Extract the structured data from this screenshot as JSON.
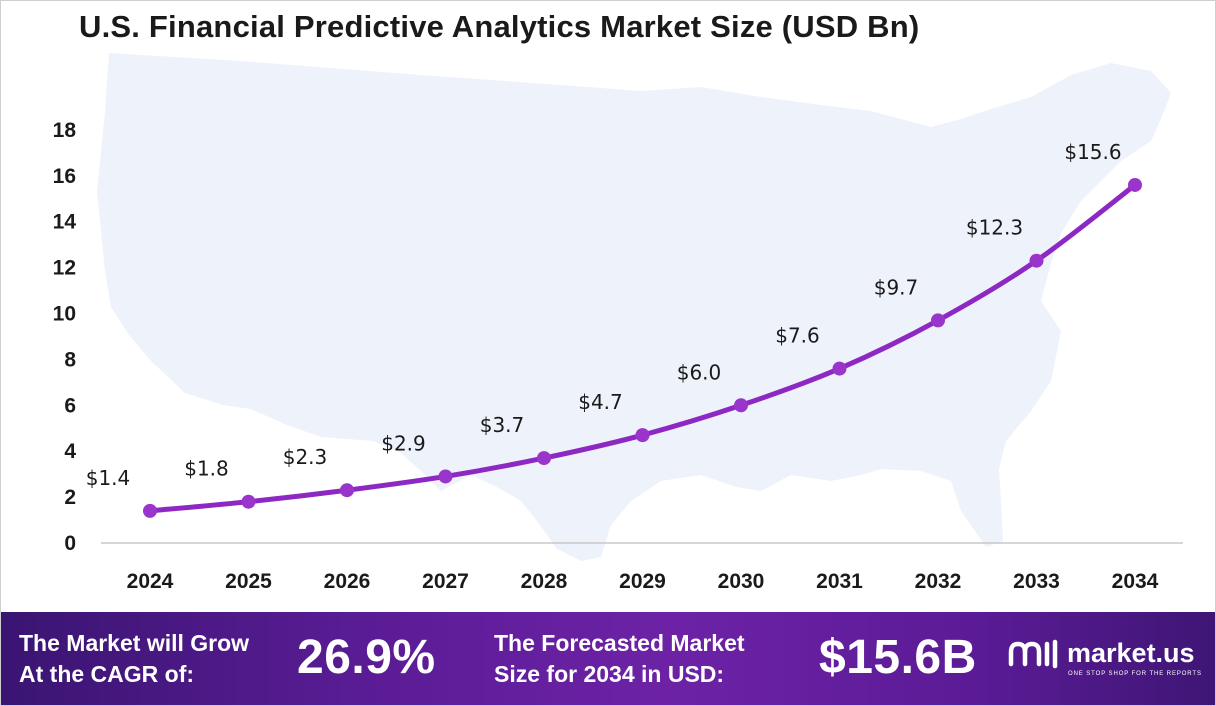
{
  "title": "U.S. Financial Predictive Analytics Market Size (USD Bn)",
  "colors": {
    "line": "#8e28c2",
    "marker": "#9a35cc",
    "map": "#eef2fa",
    "axis": "#c8c8c8",
    "footer_start": "#3a1572",
    "footer_mid": "#6d22a6"
  },
  "chart_data": {
    "type": "line",
    "title": "U.S. Financial Predictive Analytics Market Size (USD Bn)",
    "xlabel": "",
    "ylabel": "",
    "categories": [
      "2024",
      "2025",
      "2026",
      "2027",
      "2028",
      "2029",
      "2030",
      "2031",
      "2032",
      "2033",
      "2034"
    ],
    "values": [
      1.4,
      1.8,
      2.3,
      2.9,
      3.7,
      4.7,
      6.0,
      7.6,
      9.7,
      12.3,
      15.6
    ],
    "value_labels": [
      "$1.4",
      "$1.8",
      "$2.3",
      "$2.9",
      "$3.7",
      "$4.7",
      "$6.0",
      "$7.6",
      "$9.7",
      "$12.3",
      "$15.6"
    ],
    "ylim": [
      0,
      18
    ],
    "yticks": [
      0,
      2,
      4,
      6,
      8,
      10,
      12,
      14,
      16,
      18
    ],
    "grid": false,
    "legend": "none"
  },
  "footer": {
    "cagr_label_line1": "The Market will Grow",
    "cagr_label_line2": "At the CAGR of:",
    "cagr_value": "26.9%",
    "forecast_label_line1": "The Forecasted Market",
    "forecast_label_line2": "Size for 2034 in USD:",
    "forecast_value": "$15.6B",
    "brand_name": "market.us",
    "brand_tagline": "ONE STOP SHOP FOR THE REPORTS",
    "brand_icon": "market-us-logo-icon"
  }
}
